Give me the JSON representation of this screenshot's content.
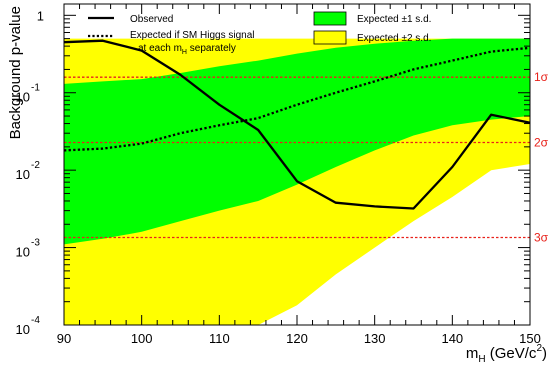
{
  "chart_data": {
    "type": "line",
    "xlabel": {
      "m": "m",
      "sub": "H",
      "rest": " (GeV/c",
      "sup": "2",
      "close": ")"
    },
    "ylabel": "Background p-value",
    "xlim": [
      90,
      150
    ],
    "ylim": [
      0.0001,
      1.4
    ],
    "yscale": "log",
    "x_ticks": [
      90,
      100,
      110,
      120,
      130,
      140,
      150
    ],
    "y_ticks": [
      {
        "value": 1,
        "base": "1",
        "exp": ""
      },
      {
        "value": 0.1,
        "base": "10",
        "exp": "-1"
      },
      {
        "value": 0.01,
        "base": "10",
        "exp": "-2"
      },
      {
        "value": 0.001,
        "base": "10",
        "exp": "-3"
      },
      {
        "value": 0.0001,
        "base": "10",
        "exp": "-4"
      }
    ],
    "legend": [
      {
        "label": "Observed",
        "style": "solid"
      },
      {
        "label": "Expected if SM Higgs signal",
        "label2": "at each m",
        "label2_sub": "H",
        "label2_rest": " separately",
        "style": "dotted"
      },
      {
        "label": "Expected ±1 s.d.",
        "color": "#00ff00"
      },
      {
        "label": "Expected ±2 s.d.",
        "color": "#ffff00"
      }
    ],
    "sigma_lines": [
      {
        "label": "1σ",
        "value": 0.1587
      },
      {
        "label": "2σ",
        "value": 0.02275
      },
      {
        "label": "3σ",
        "value": 0.00135
      }
    ],
    "x": [
      90,
      95,
      100,
      105,
      110,
      115,
      120,
      125,
      130,
      135,
      140,
      145,
      150
    ],
    "band_2sd": {
      "upper": [
        0.5,
        0.5,
        0.5,
        0.5,
        0.5,
        0.5,
        0.5,
        0.5,
        0.5,
        0.5,
        0.5,
        0.5,
        0.5
      ],
      "lower": [
        0.0001,
        0.0001,
        0.0001,
        0.0001,
        0.0001,
        0.0001,
        0.00018,
        0.00045,
        0.001,
        0.0022,
        0.0045,
        0.01,
        0.012
      ]
    },
    "band_1sd": {
      "upper": [
        0.13,
        0.14,
        0.15,
        0.18,
        0.22,
        0.26,
        0.32,
        0.38,
        0.43,
        0.47,
        0.5,
        0.5,
        0.5
      ],
      "lower": [
        0.0011,
        0.0013,
        0.0016,
        0.0022,
        0.003,
        0.004,
        0.0065,
        0.011,
        0.018,
        0.028,
        0.038,
        0.045,
        0.05
      ]
    },
    "series": [
      {
        "name": "Observed",
        "style": "solid",
        "values": [
          0.45,
          0.47,
          0.35,
          0.17,
          0.07,
          0.033,
          0.0072,
          0.0038,
          0.0034,
          0.0032,
          0.011,
          0.052,
          0.041
        ]
      },
      {
        "name": "Expected if SM Higgs signal at each mH separately",
        "style": "dotted",
        "values": [
          0.018,
          0.019,
          0.022,
          0.03,
          0.038,
          0.047,
          0.07,
          0.1,
          0.14,
          0.2,
          0.26,
          0.34,
          0.38
        ]
      }
    ],
    "colors": {
      "band_2sd": "#ffff00",
      "band_1sd": "#00ff00",
      "sigma": "#e8221b",
      "line": "#000000"
    }
  }
}
